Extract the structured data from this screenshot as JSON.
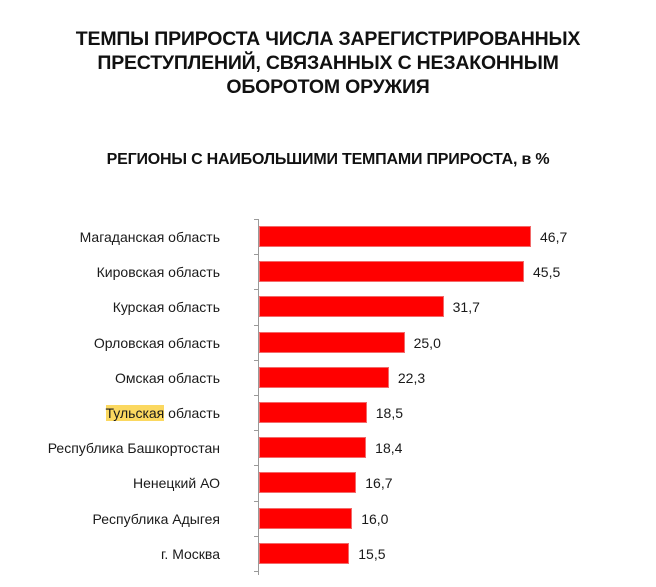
{
  "header": {
    "title": "ТЕМПЫ ПРИРОСТА ЧИСЛА ЗАРЕГИСТРИРОВАННЫХ\nПРЕСТУПЛЕНИЙ, СВЯЗАННЫХ С НЕЗАКОННЫМ\nОБОРОТОМ ОРУЖИЯ",
    "subtitle": "РЕГИОНЫ С НАИБОЛЬШИМИ ТЕМПАМИ ПРИРОСТА, в %"
  },
  "colors": {
    "bar": "#ff0000",
    "highlight": "#fbd860",
    "axis": "#9a9a9a"
  },
  "chart_data": {
    "type": "bar",
    "orientation": "horizontal",
    "title": "ТЕМПЫ ПРИРОСТА ЧИСЛА ЗАРЕГИСТРИРОВАННЫХ ПРЕСТУПЛЕНИЙ, СВЯЗАННЫХ С НЕЗАКОННЫМ ОБОРОТОМ ОРУЖИЯ",
    "subtitle": "РЕГИОНЫ С НАИБОЛЬШИМИ ТЕМПАМИ ПРИРОСТА, в %",
    "xlabel": "",
    "ylabel": "",
    "grid": false,
    "legend": null,
    "categories": [
      "Магаданская область",
      "Кировская область",
      "Курская область",
      "Орловская область",
      "Омская область",
      "Тульская область",
      "Республика Башкортостан",
      "Ненецкий АО",
      "Республика Адыгея",
      "г. Москва"
    ],
    "values": [
      46.7,
      45.5,
      31.7,
      25.0,
      22.3,
      18.5,
      18.4,
      16.7,
      16.0,
      15.5
    ],
    "value_labels": [
      "46,7",
      "45,5",
      "31,7",
      "25,0",
      "22,3",
      "18,5",
      "18,4",
      "16,7",
      "16,0",
      "15,5"
    ],
    "highlighted_text": "Тульская",
    "xlim": [
      0,
      50
    ]
  },
  "rows": [
    {
      "label": "Магаданская область",
      "value": "46,7",
      "num": 46.7
    },
    {
      "label": "Кировская область",
      "value": "45,5",
      "num": 45.5
    },
    {
      "label": "Курская область",
      "value": "31,7",
      "num": 31.7
    },
    {
      "label": "Орловская область",
      "value": "25,0",
      "num": 25.0
    },
    {
      "label": "Омская область",
      "value": "22,3",
      "num": 22.3
    },
    {
      "label_hl": "Тульская",
      "label": " область",
      "value": "18,5",
      "num": 18.5
    },
    {
      "label": "Республика Башкортостан",
      "value": "18,4",
      "num": 18.4
    },
    {
      "label": "Ненецкий АО",
      "value": "16,7",
      "num": 16.7
    },
    {
      "label": "Республика Адыгея",
      "value": "16,0",
      "num": 16.0
    },
    {
      "label": "г. Москва",
      "value": "15,5",
      "num": 15.5
    }
  ]
}
